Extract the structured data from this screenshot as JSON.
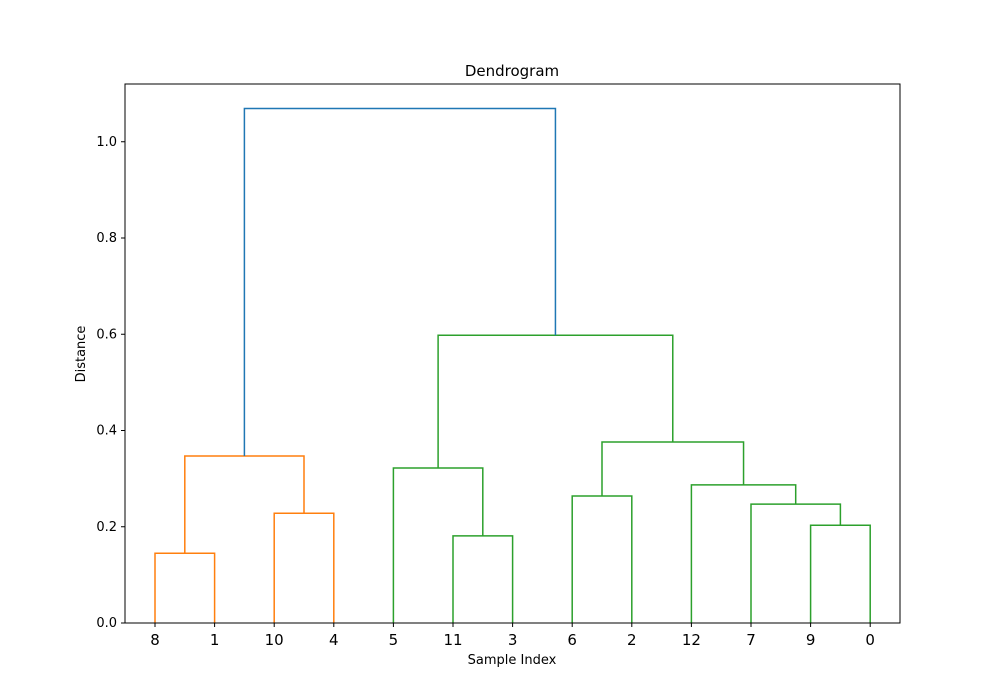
{
  "chart_data": {
    "type": "dendrogram",
    "title": "Dendrogram",
    "xlabel": "Sample Index",
    "ylabel": "Distance",
    "ylim": [
      0,
      1.12
    ],
    "yticks": [
      "0.0",
      "0.2",
      "0.4",
      "0.6",
      "0.8",
      "1.0"
    ],
    "leaf_order": [
      "8",
      "1",
      "10",
      "4",
      "5",
      "11",
      "3",
      "6",
      "2",
      "12",
      "7",
      "9",
      "0"
    ],
    "colors": {
      "cluster_a": "#ff7f0e",
      "cluster_b": "#2ca02c",
      "above_threshold": "#1f77b4"
    },
    "merges": [
      {
        "left": "8",
        "right": "1",
        "height": 0.145,
        "color": "cluster_a"
      },
      {
        "left": "10",
        "right": "4",
        "height": 0.228,
        "color": "cluster_a"
      },
      {
        "left": "(8,1)",
        "right": "(10,4)",
        "height": 0.347,
        "color": "cluster_a"
      },
      {
        "left": "11",
        "right": "3",
        "height": 0.181,
        "color": "cluster_b"
      },
      {
        "left": "5",
        "right": "(11,3)",
        "height": 0.322,
        "color": "cluster_b"
      },
      {
        "left": "6",
        "right": "2",
        "height": 0.264,
        "color": "cluster_b"
      },
      {
        "left": "9",
        "right": "0",
        "height": 0.203,
        "color": "cluster_b"
      },
      {
        "left": "7",
        "right": "(9,0)",
        "height": 0.247,
        "color": "cluster_b"
      },
      {
        "left": "12",
        "right": "(7,9,0)",
        "height": 0.287,
        "color": "cluster_b"
      },
      {
        "left": "(6,2)",
        "right": "(12,7,9,0)",
        "height": 0.376,
        "color": "cluster_b"
      },
      {
        "left": "(5,11,3)",
        "right": "(6,2,12,7,9,0)",
        "height": 0.598,
        "color": "cluster_b"
      },
      {
        "left": "(8,1,10,4)",
        "right": "(5,11,3,6,2,12,7,9,0)",
        "height": 1.069,
        "color": "above_threshold"
      }
    ]
  }
}
